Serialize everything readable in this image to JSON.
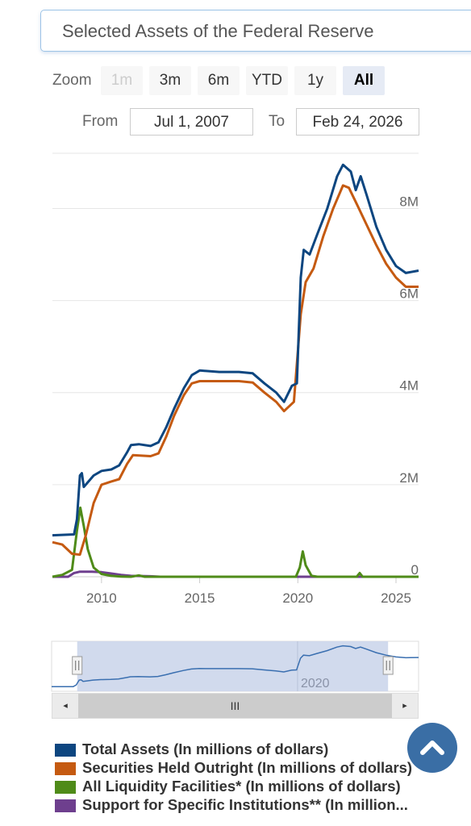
{
  "title": "Selected Assets of the Federal Reserve",
  "zoom": {
    "label": "Zoom",
    "buttons": [
      {
        "label": "1m",
        "state": "disabled"
      },
      {
        "label": "3m",
        "state": "normal"
      },
      {
        "label": "6m",
        "state": "normal"
      },
      {
        "label": "YTD",
        "state": "normal"
      },
      {
        "label": "1y",
        "state": "normal"
      },
      {
        "label": "All",
        "state": "active"
      }
    ]
  },
  "range": {
    "from_label": "From",
    "from_value": "Jul 1, 2007",
    "to_label": "To",
    "to_value": "Feb 24, 2026"
  },
  "navigator": {
    "tick_label": "2020",
    "scroll_thumb_label": "III",
    "left_arrow": "◂",
    "right_arrow": "▸"
  },
  "scroll_top_icon": "chevron-up-icon",
  "chart_data": {
    "type": "line",
    "xlim": [
      2007.5,
      2026.15
    ],
    "ylim": [
      0,
      9200000
    ],
    "x_ticks": [
      2010,
      2015,
      2020,
      2025
    ],
    "x_tick_labels": [
      "2010",
      "2015",
      "2020",
      "2025"
    ],
    "y_ticks": [
      0,
      2000000,
      4000000,
      6000000,
      8000000
    ],
    "y_tick_labels": [
      "0",
      "2M",
      "4M",
      "6M",
      "8M"
    ],
    "grid": true,
    "legend_position": "bottom",
    "series": [
      {
        "name": "Total Assets (In millions of dollars)",
        "color": "#0d4680",
        "points": [
          [
            2007.5,
            900000
          ],
          [
            2008.6,
            920000
          ],
          [
            2008.75,
            1250000
          ],
          [
            2008.9,
            2200000
          ],
          [
            2009.0,
            2250000
          ],
          [
            2009.1,
            1950000
          ],
          [
            2009.3,
            2050000
          ],
          [
            2009.6,
            2200000
          ],
          [
            2010.0,
            2300000
          ],
          [
            2010.5,
            2330000
          ],
          [
            2010.9,
            2420000
          ],
          [
            2011.3,
            2700000
          ],
          [
            2011.5,
            2860000
          ],
          [
            2011.9,
            2880000
          ],
          [
            2012.5,
            2840000
          ],
          [
            2012.9,
            2920000
          ],
          [
            2013.3,
            3250000
          ],
          [
            2013.7,
            3650000
          ],
          [
            2014.2,
            4100000
          ],
          [
            2014.6,
            4380000
          ],
          [
            2015.0,
            4480000
          ],
          [
            2016.0,
            4450000
          ],
          [
            2017.0,
            4450000
          ],
          [
            2017.7,
            4420000
          ],
          [
            2018.3,
            4200000
          ],
          [
            2018.9,
            4000000
          ],
          [
            2019.3,
            3800000
          ],
          [
            2019.7,
            4150000
          ],
          [
            2019.95,
            4200000
          ],
          [
            2020.15,
            6500000
          ],
          [
            2020.3,
            7100000
          ],
          [
            2020.6,
            7000000
          ],
          [
            2021.0,
            7450000
          ],
          [
            2021.5,
            8000000
          ],
          [
            2022.0,
            8700000
          ],
          [
            2022.3,
            8950000
          ],
          [
            2022.7,
            8800000
          ],
          [
            2022.95,
            8400000
          ],
          [
            2023.2,
            8700000
          ],
          [
            2023.5,
            8300000
          ],
          [
            2024.0,
            7600000
          ],
          [
            2024.5,
            7100000
          ],
          [
            2025.0,
            6750000
          ],
          [
            2025.5,
            6600000
          ],
          [
            2026.15,
            6650000
          ]
        ]
      },
      {
        "name": "Securities Held Outright (In millions of dollars)",
        "color": "#c55a11",
        "points": [
          [
            2007.5,
            750000
          ],
          [
            2008.0,
            700000
          ],
          [
            2008.5,
            500000
          ],
          [
            2008.9,
            480000
          ],
          [
            2009.2,
            900000
          ],
          [
            2009.6,
            1600000
          ],
          [
            2010.0,
            2000000
          ],
          [
            2010.5,
            2070000
          ],
          [
            2010.9,
            2120000
          ],
          [
            2011.3,
            2450000
          ],
          [
            2011.6,
            2640000
          ],
          [
            2012.5,
            2620000
          ],
          [
            2012.9,
            2680000
          ],
          [
            2013.3,
            3050000
          ],
          [
            2013.7,
            3500000
          ],
          [
            2014.2,
            3950000
          ],
          [
            2014.6,
            4200000
          ],
          [
            2015.0,
            4250000
          ],
          [
            2016.0,
            4250000
          ],
          [
            2017.0,
            4250000
          ],
          [
            2017.7,
            4220000
          ],
          [
            2018.3,
            4000000
          ],
          [
            2018.9,
            3800000
          ],
          [
            2019.3,
            3600000
          ],
          [
            2019.8,
            3800000
          ],
          [
            2020.15,
            5700000
          ],
          [
            2020.4,
            6400000
          ],
          [
            2020.8,
            6700000
          ],
          [
            2021.3,
            7400000
          ],
          [
            2021.8,
            8000000
          ],
          [
            2022.3,
            8500000
          ],
          [
            2022.6,
            8450000
          ],
          [
            2023.0,
            8100000
          ],
          [
            2023.5,
            7650000
          ],
          [
            2024.0,
            7200000
          ],
          [
            2024.5,
            6800000
          ],
          [
            2025.0,
            6500000
          ],
          [
            2025.5,
            6300000
          ],
          [
            2026.15,
            6300000
          ]
        ]
      },
      {
        "name": "All Liquidity Facilities* (In millions of dollars)",
        "color": "#4f8b19",
        "points": [
          [
            2007.5,
            0
          ],
          [
            2008.0,
            40000
          ],
          [
            2008.5,
            150000
          ],
          [
            2008.75,
            1000000
          ],
          [
            2008.92,
            1500000
          ],
          [
            2009.1,
            1100000
          ],
          [
            2009.3,
            600000
          ],
          [
            2009.6,
            200000
          ],
          [
            2010.0,
            60000
          ],
          [
            2010.5,
            20000
          ],
          [
            2011.0,
            5000
          ],
          [
            2011.5,
            0
          ],
          [
            2011.9,
            30000
          ],
          [
            2012.2,
            0
          ],
          [
            2019.9,
            0
          ],
          [
            2020.1,
            200000
          ],
          [
            2020.25,
            550000
          ],
          [
            2020.4,
            250000
          ],
          [
            2020.7,
            20000
          ],
          [
            2021.0,
            0
          ],
          [
            2023.0,
            0
          ],
          [
            2023.15,
            80000
          ],
          [
            2023.3,
            0
          ],
          [
            2026.15,
            0
          ]
        ]
      },
      {
        "name": "Support for Specific Institutions** (In millions of dollars)",
        "color": "#6e3f8e",
        "points": [
          [
            2007.5,
            0
          ],
          [
            2008.3,
            0
          ],
          [
            2008.6,
            80000
          ],
          [
            2008.9,
            110000
          ],
          [
            2009.5,
            110000
          ],
          [
            2010.0,
            100000
          ],
          [
            2010.5,
            70000
          ],
          [
            2011.0,
            40000
          ],
          [
            2011.5,
            20000
          ],
          [
            2012.5,
            10000
          ],
          [
            2013.0,
            0
          ],
          [
            2026.15,
            0
          ]
        ]
      }
    ]
  }
}
